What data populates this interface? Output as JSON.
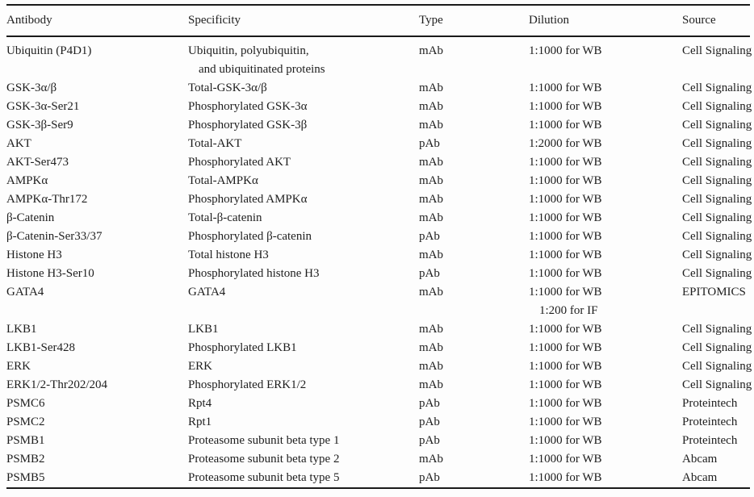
{
  "table": {
    "columns": [
      "Antibody",
      "Specificity",
      "Type",
      "Dilution",
      "Source"
    ],
    "rows": [
      {
        "antibody": "Ubiquitin (P4D1)",
        "specificity": [
          "Ubiquitin, polyubiquitin,",
          "and ubiquitinated proteins"
        ],
        "type": "mAb",
        "dilution": "1:1000 for WB",
        "source": "Cell Signaling"
      },
      {
        "antibody": "GSK-3α/β",
        "specificity": "Total-GSK-3α/β",
        "type": "mAb",
        "dilution": "1:1000 for WB",
        "source": "Cell Signaling"
      },
      {
        "antibody": "GSK-3α-Ser21",
        "specificity": "Phosphorylated GSK-3α",
        "type": "mAb",
        "dilution": "1:1000 for WB",
        "source": "Cell Signaling"
      },
      {
        "antibody": "GSK-3β-Ser9",
        "specificity": "Phosphorylated GSK-3β",
        "type": "mAb",
        "dilution": "1:1000 for WB",
        "source": "Cell Signaling"
      },
      {
        "antibody": "AKT",
        "specificity": "Total-AKT",
        "type": "pAb",
        "dilution": "1:2000 for WB",
        "source": "Cell Signaling"
      },
      {
        "antibody": "AKT-Ser473",
        "specificity": "Phosphorylated AKT",
        "type": "mAb",
        "dilution": "1:1000 for WB",
        "source": "Cell Signaling"
      },
      {
        "antibody": "AMPKα",
        "specificity": "Total-AMPKα",
        "type": "mAb",
        "dilution": "1:1000 for WB",
        "source": "Cell Signaling"
      },
      {
        "antibody": "AMPKα-Thr172",
        "specificity": "Phosphorylated AMPKα",
        "type": "mAb",
        "dilution": "1:1000 for WB",
        "source": "Cell Signaling"
      },
      {
        "antibody": "β-Catenin",
        "specificity": "Total-β-catenin",
        "type": "mAb",
        "dilution": "1:1000 for WB",
        "source": "Cell Signaling"
      },
      {
        "antibody": "β-Catenin-Ser33/37",
        "specificity": "Phosphorylated β-catenin",
        "type": "pAb",
        "dilution": "1:1000 for WB",
        "source": "Cell Signaling"
      },
      {
        "antibody": "Histone H3",
        "specificity": "Total histone H3",
        "type": "mAb",
        "dilution": "1:1000 for WB",
        "source": "Cell Signaling"
      },
      {
        "antibody": "Histone H3-Ser10",
        "specificity": "Phosphorylated histone H3",
        "type": "pAb",
        "dilution": "1:1000 for WB",
        "source": "Cell Signaling"
      },
      {
        "antibody": "GATA4",
        "specificity": "GATA4",
        "type": "mAb",
        "dilution": [
          "1:1000 for WB",
          "1:200 for IF"
        ],
        "source": "EPITOMICS"
      },
      {
        "antibody": "LKB1",
        "specificity": "LKB1",
        "type": "mAb",
        "dilution": "1:1000 for WB",
        "source": "Cell Signaling"
      },
      {
        "antibody": "LKB1-Ser428",
        "specificity": "Phosphorylated LKB1",
        "type": "mAb",
        "dilution": "1:1000 for WB",
        "source": "Cell Signaling"
      },
      {
        "antibody": "ERK",
        "specificity": "ERK",
        "type": "mAb",
        "dilution": "1:1000 for WB",
        "source": "Cell Signaling"
      },
      {
        "antibody": "ERK1/2-Thr202/204",
        "specificity": "Phosphorylated ERK1/2",
        "type": "mAb",
        "dilution": "1:1000 for WB",
        "source": "Cell Signaling"
      },
      {
        "antibody": "PSMC6",
        "specificity": "Rpt4",
        "type": "pAb",
        "dilution": "1:1000 for WB",
        "source": "Proteintech"
      },
      {
        "antibody": "PSMC2",
        "specificity": "Rpt1",
        "type": "pAb",
        "dilution": "1:1000 for WB",
        "source": "Proteintech"
      },
      {
        "antibody": "PSMB1",
        "specificity": "Proteasome subunit beta type 1",
        "type": "pAb",
        "dilution": "1:1000 for WB",
        "source": "Proteintech"
      },
      {
        "antibody": "PSMB2",
        "specificity": "Proteasome subunit beta type 2",
        "type": "mAb",
        "dilution": "1:1000 for WB",
        "source": "Abcam"
      },
      {
        "antibody": "PSMB5",
        "specificity": "Proteasome subunit beta type 5",
        "type": "pAb",
        "dilution": "1:1000 for WB",
        "source": "Abcam"
      }
    ]
  }
}
